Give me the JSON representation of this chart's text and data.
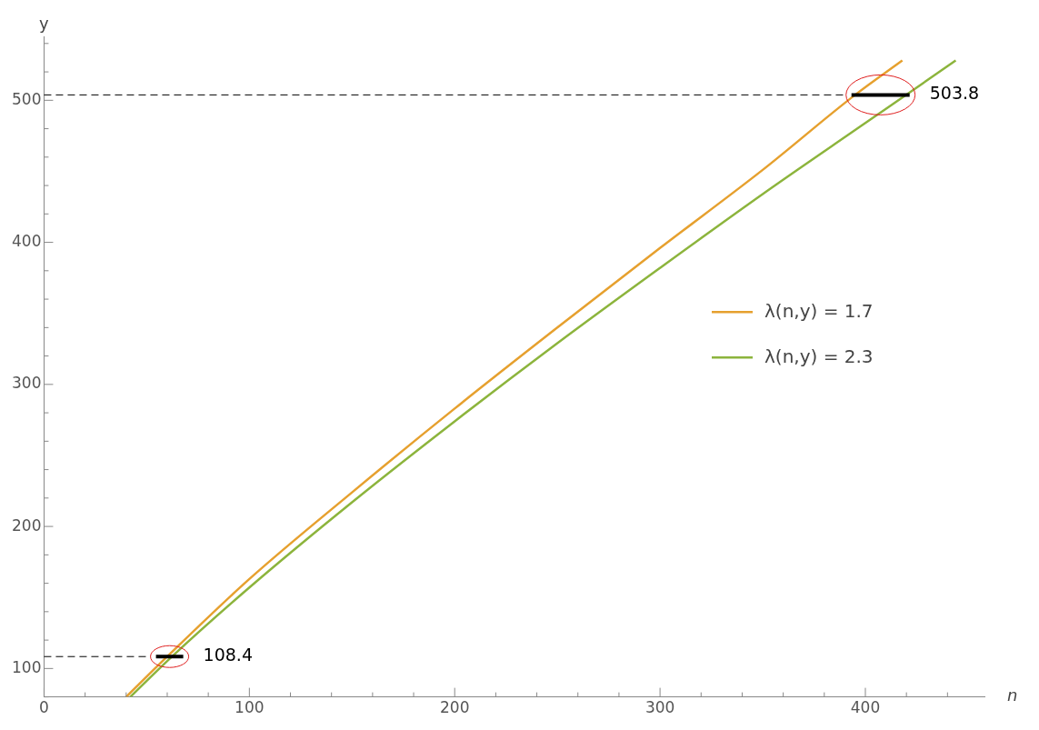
{
  "chart_data": {
    "type": "line",
    "xlabel": "n",
    "ylabel": "y",
    "xlim": [
      0,
      458
    ],
    "ylim": [
      80,
      545
    ],
    "xticks": [
      0,
      {
        "value": 20,
        "label": null
      },
      {
        "value": 40,
        "label": null
      },
      {
        "value": 60,
        "label": null
      },
      {
        "value": 80,
        "label": null
      },
      100,
      {
        "value": 120,
        "label": null
      },
      {
        "value": 140,
        "label": null
      },
      {
        "value": 160,
        "label": null
      },
      {
        "value": 180,
        "label": null
      },
      200,
      {
        "value": 220,
        "label": null
      },
      {
        "value": 240,
        "label": null
      },
      {
        "value": 260,
        "label": null
      },
      {
        "value": 280,
        "label": null
      },
      300,
      {
        "value": 320,
        "label": null
      },
      {
        "value": 340,
        "label": null
      },
      {
        "value": 360,
        "label": null
      },
      {
        "value": 380,
        "label": null
      },
      400,
      {
        "value": 420,
        "label": null
      },
      {
        "value": 440,
        "label": null
      }
    ],
    "yticks": [
      {
        "value": 80,
        "label": null
      },
      100,
      {
        "value": 120,
        "label": null
      },
      {
        "value": 140,
        "label": null
      },
      {
        "value": 160,
        "label": null
      },
      {
        "value": 180,
        "label": null
      },
      200,
      {
        "value": 220,
        "label": null
      },
      {
        "value": 240,
        "label": null
      },
      {
        "value": 260,
        "label": null
      },
      {
        "value": 280,
        "label": null
      },
      300,
      {
        "value": 320,
        "label": null
      },
      {
        "value": 340,
        "label": null
      },
      {
        "value": 360,
        "label": null
      },
      {
        "value": 380,
        "label": null
      },
      400,
      {
        "value": 420,
        "label": null
      },
      {
        "value": 440,
        "label": null
      },
      {
        "value": 460,
        "label": null
      },
      {
        "value": 480,
        "label": null
      },
      500,
      {
        "value": 520,
        "label": null
      },
      {
        "value": 540,
        "label": null
      }
    ],
    "grid": false,
    "legend": "right",
    "marker": "none",
    "line_style": "solid",
    "series": [
      {
        "name": "λ(n,y) = 1.7",
        "color": "#e6a02e",
        "x": [
          40,
          60,
          100,
          150,
          200,
          250,
          300,
          350,
          395,
          418
        ],
        "values": [
          80,
          108.4,
          163,
          224,
          283,
          340,
          396,
          451,
          503.8,
          528
        ]
      },
      {
        "name": "λ(n,y) = 2.3",
        "color": "#8cb43c",
        "x": [
          42,
          62,
          100,
          150,
          200,
          250,
          300,
          350,
          400,
          444
        ],
        "values": [
          80,
          108,
          157,
          217,
          274,
          329,
          382,
          434,
          484,
          528
        ]
      }
    ],
    "ref_lines": [
      {
        "axis": "y",
        "value": 108.4,
        "label": "108.4",
        "line_style": "dashed",
        "color": "#000000"
      },
      {
        "axis": "y",
        "value": 503.8,
        "label": "503.8",
        "line_style": "dashed",
        "color": "#000000"
      }
    ]
  }
}
